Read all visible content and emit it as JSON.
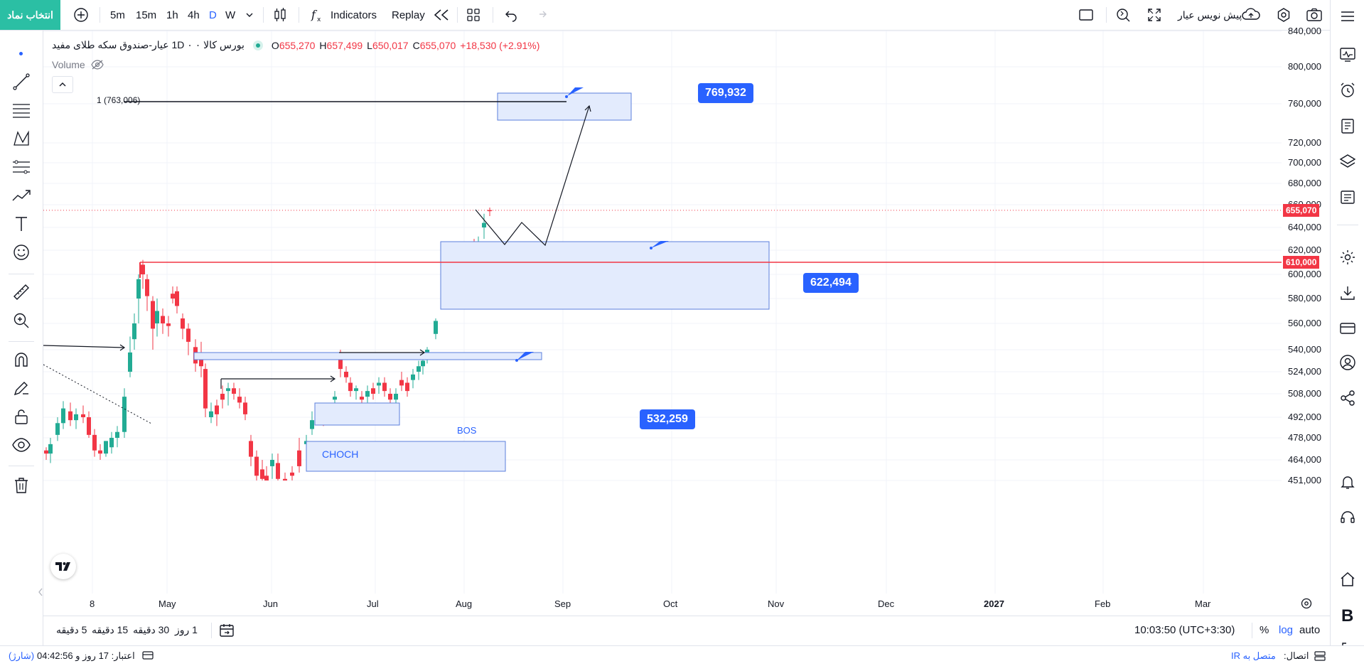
{
  "toolbar": {
    "symbol_button": "انتخاب نماد",
    "intervals": [
      "5m",
      "15m",
      "1h",
      "4h",
      "D",
      "W"
    ],
    "active_interval": "D",
    "indicators_label": "Indicators",
    "replay_label": "Replay",
    "broker_label": "پیش نویس عیار"
  },
  "legend": {
    "symbol": "بورس کالا ۰ 1D ۰ عیار-صندوق سکه طلای مفید",
    "open_label": "O",
    "open": "655,270",
    "high_label": "H",
    "high": "657,499",
    "low_label": "L",
    "low": "650,017",
    "close_label": "C",
    "close": "655,070",
    "change": "+18,530 (+2.91%)",
    "volume_label": "Volume"
  },
  "price_axis": {
    "labels": [
      "840,000",
      "800,000",
      "760,000",
      "720,000",
      "700,000",
      "680,000",
      "660,000",
      "640,000",
      "620,000",
      "600,000",
      "580,000",
      "560,000",
      "540,000",
      "524,000",
      "508,000",
      "492,000",
      "478,000",
      "464,000",
      "451,000"
    ],
    "last_price": "655,070",
    "line_price": "610,000"
  },
  "time_axis": [
    "8",
    "May",
    "Jun",
    "Jul",
    "Aug",
    "Sep",
    "Oct",
    "Nov",
    "Dec",
    "2027",
    "Feb",
    "Mar"
  ],
  "annotations": {
    "target_top": "769,932",
    "zone_mid": "622,494",
    "zone_low": "532,259",
    "fib_label": "1 (763,006)",
    "choch": "CHOCH",
    "bos": "BOS"
  },
  "bottom": {
    "timeframes": [
      "5 دقیقه",
      "15 دقیقه",
      "30 دقیقه",
      "1 روز"
    ],
    "clock": "10:03:50 (UTC+3:30)",
    "percent": "%",
    "log": "log",
    "auto": "auto"
  },
  "status": {
    "credit": "اعتبار: 17 روز و 04:42:56",
    "charge": "(شارژ)",
    "connection_label": "اتصال:",
    "connection_value": "متصل به IR"
  },
  "colors": {
    "up": "#22ab94",
    "down": "#f23645",
    "accent": "#2962ff",
    "zone_fill": "#e3ebfd",
    "zone_border": "#5b7fdc",
    "red_line": "#f23645"
  },
  "chart_data": {
    "type": "candlestick",
    "ylim": [
      451000,
      840000
    ],
    "x_ticks": [
      "8",
      "May",
      "Jun",
      "Jul",
      "Aug",
      "Sep",
      "Oct",
      "Nov",
      "Dec",
      "2027",
      "Feb",
      "Mar"
    ],
    "horizontal_lines": [
      {
        "value": 610000,
        "label": "610,000"
      },
      {
        "value": 763006,
        "label": "1 (763,006)"
      }
    ],
    "zones": [
      {
        "label": "769,932",
        "low": 745000,
        "high": 770000
      },
      {
        "label": "622,494",
        "low": 575000,
        "high": 625000
      },
      {
        "label": "532,259",
        "low": 535000,
        "high": 541000
      }
    ],
    "last": {
      "open": 655270,
      "high": 657499,
      "low": 650017,
      "close": 655070,
      "change": "+18,530 (+2.91%)"
    }
  }
}
